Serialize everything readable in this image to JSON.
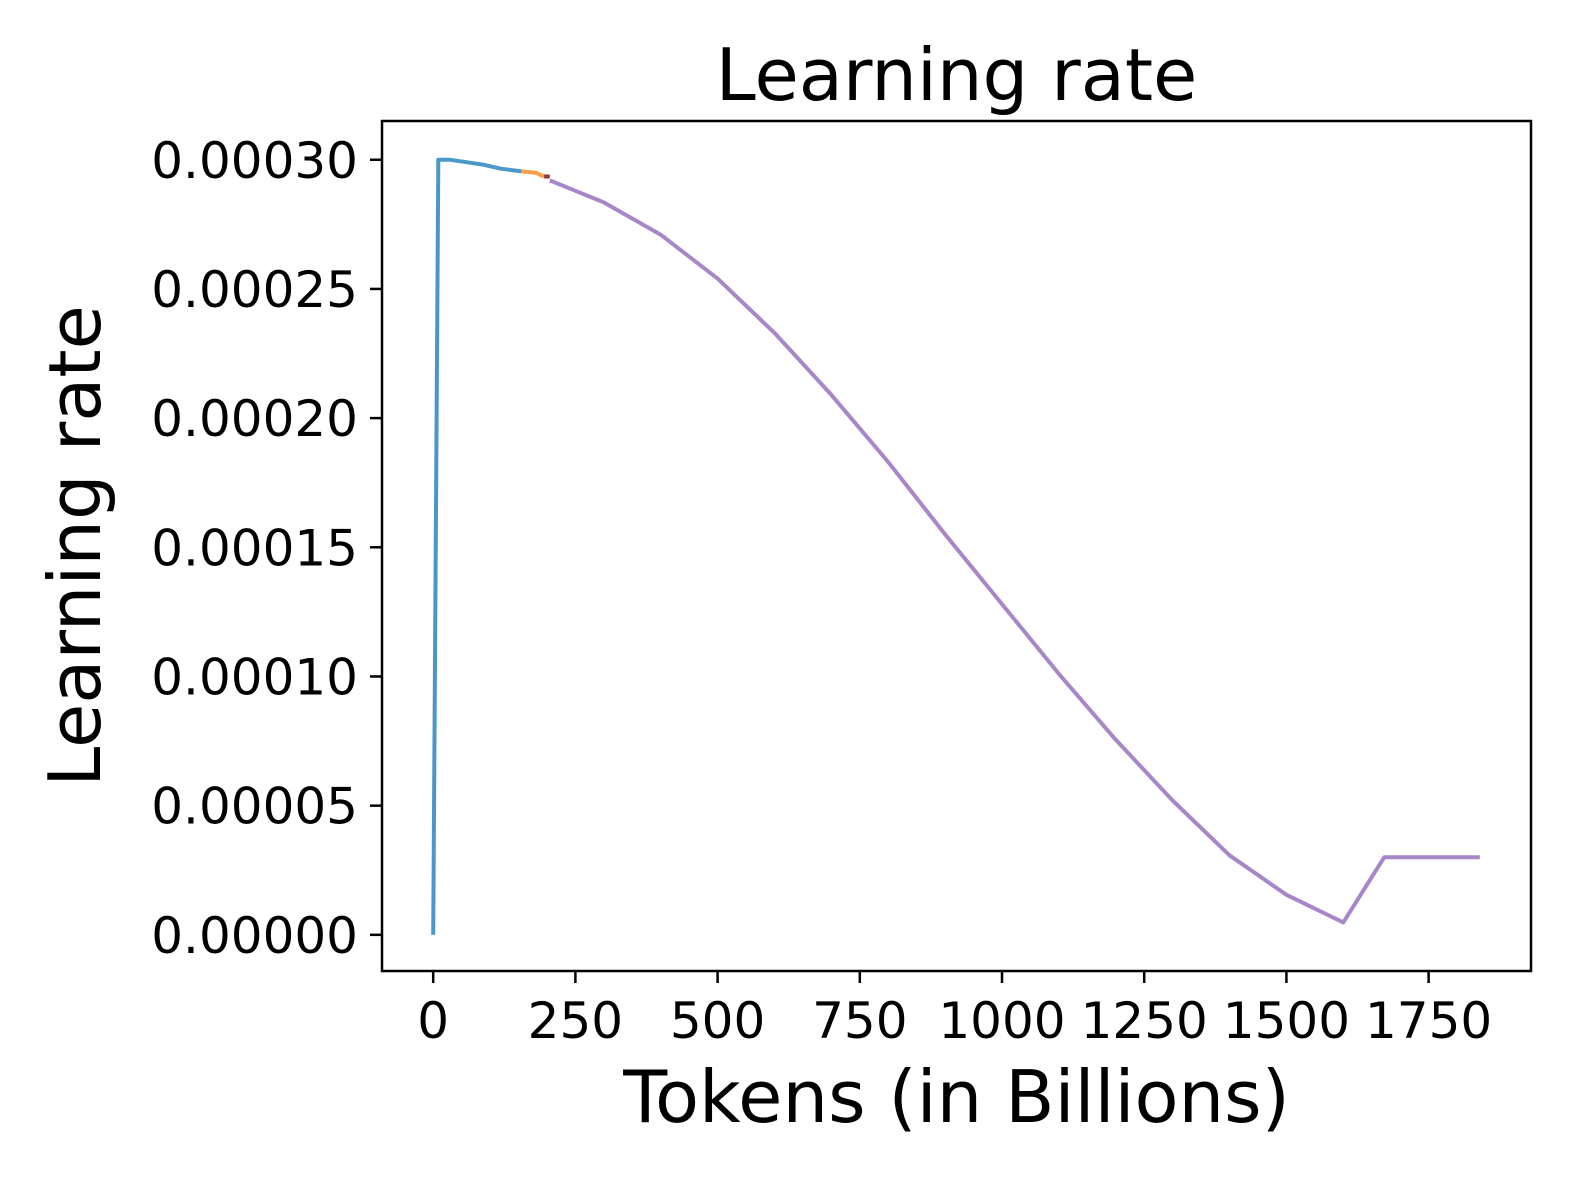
{
  "chart_data": {
    "type": "line",
    "title": "Learning rate",
    "xlabel": "Tokens (in Billions)",
    "ylabel": "Learning rate",
    "xlim": [
      -90,
      1930
    ],
    "ylim": [
      -1.4e-05,
      0.000315
    ],
    "xticks": [
      0,
      250,
      500,
      750,
      1000,
      1250,
      1500,
      1750
    ],
    "xtick_labels": [
      "0",
      "250",
      "500",
      "750",
      "1000",
      "1250",
      "1500",
      "1750"
    ],
    "yticks": [
      0,
      5e-05,
      0.0001,
      0.00015,
      0.0002,
      0.00025,
      0.0003
    ],
    "ytick_labels": [
      "0.00000",
      "0.00005",
      "0.00010",
      "0.00015",
      "0.00020",
      "0.00025",
      "0.00030"
    ],
    "grid": false,
    "legend": "none",
    "series": [
      {
        "color": "#4a98c9",
        "x": [
          0,
          9,
          30,
          60,
          90,
          120,
          155
        ],
        "y": [
          0,
          0.0003,
          0.0003,
          0.000299,
          0.000298,
          0.0002965,
          0.0002955
        ]
      },
      {
        "color": "#f5a048",
        "x": [
          155,
          180,
          195
        ],
        "y": [
          0.0002955,
          0.000295,
          0.0002935
        ]
      },
      {
        "color": "#8c3c3c",
        "x": [
          195,
          205
        ],
        "y": [
          0.0002935,
          0.0002935
        ]
      },
      {
        "color": "#a887c8",
        "x": [
          205,
          250,
          300,
          400,
          500,
          600,
          700,
          800,
          900,
          1000,
          1100,
          1200,
          1300,
          1400,
          1500,
          1600,
          1672,
          1700,
          1750,
          1800,
          1840
        ],
        "y": [
          0.000292,
          0.000288,
          0.0002835,
          0.000271,
          0.000254,
          0.000233,
          0.000209,
          0.000183,
          0.000155,
          0.000128,
          0.000101,
          7.55e-05,
          5.2e-05,
          3.08e-05,
          1.55e-05,
          4.8e-06,
          3e-05,
          3e-05,
          3e-05,
          3e-05,
          3e-05
        ]
      }
    ]
  }
}
